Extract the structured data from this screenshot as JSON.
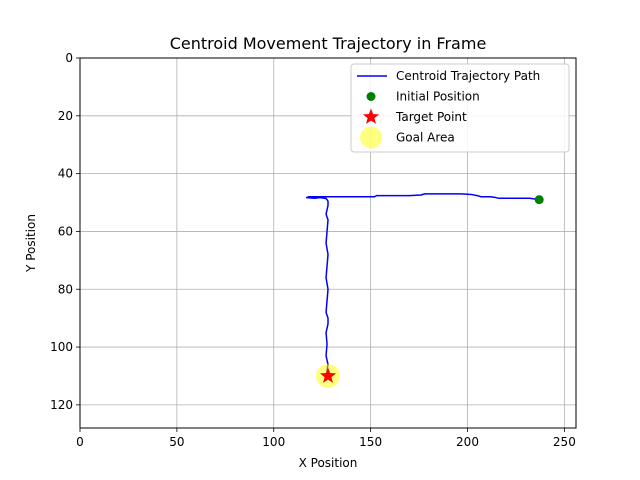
{
  "chart_data": {
    "type": "line",
    "title": "Centroid Movement Trajectory in Frame",
    "xlabel": "X Position",
    "ylabel": "Y Position",
    "xlim": [
      0,
      256
    ],
    "ylim": [
      128,
      0
    ],
    "y_inverted": true,
    "grid": true,
    "legend_position": "upper right",
    "x_ticks": [
      0,
      50,
      100,
      150,
      200,
      250
    ],
    "y_ticks": [
      0,
      20,
      40,
      60,
      80,
      100,
      120
    ],
    "series": [
      {
        "name": "Centroid Trajectory Path",
        "kind": "line",
        "color": "#0000ff",
        "points": [
          [
            237,
            49
          ],
          [
            232,
            48.5
          ],
          [
            225,
            48.5
          ],
          [
            216,
            48.5
          ],
          [
            214,
            48.2
          ],
          [
            212,
            48
          ],
          [
            207,
            48
          ],
          [
            205,
            47.6
          ],
          [
            202,
            47.2
          ],
          [
            197,
            47
          ],
          [
            190,
            47
          ],
          [
            183,
            47
          ],
          [
            178,
            47
          ],
          [
            176,
            47.4
          ],
          [
            170,
            47.6
          ],
          [
            160,
            47.6
          ],
          [
            153,
            47.6
          ],
          [
            152,
            48
          ],
          [
            150,
            48
          ],
          [
            140,
            48
          ],
          [
            133,
            48
          ],
          [
            125,
            48
          ],
          [
            118,
            48
          ],
          [
            117,
            48.3
          ],
          [
            121,
            48.5
          ],
          [
            124,
            48.3
          ],
          [
            127,
            48.6
          ],
          [
            128,
            49.5
          ],
          [
            128,
            51
          ],
          [
            127,
            54
          ],
          [
            128,
            56
          ],
          [
            127.5,
            60
          ],
          [
            127,
            64
          ],
          [
            128,
            68
          ],
          [
            127.5,
            72
          ],
          [
            127,
            76
          ],
          [
            128,
            80
          ],
          [
            127.5,
            84
          ],
          [
            127,
            88
          ],
          [
            128,
            90
          ],
          [
            128,
            92
          ],
          [
            127,
            95
          ],
          [
            127.5,
            99
          ],
          [
            127,
            103
          ],
          [
            128,
            106
          ],
          [
            127.5,
            108
          ],
          [
            128,
            110
          ]
        ]
      },
      {
        "name": "Initial Position",
        "kind": "marker-circle",
        "color": "#008000",
        "x": 237,
        "y": 49
      },
      {
        "name": "Target Point",
        "kind": "marker-star",
        "color": "#ff0000",
        "x": 128,
        "y": 110
      },
      {
        "name": "Goal Area",
        "kind": "marker-circle-large",
        "color": "#ffff00",
        "opacity": 0.5,
        "x": 128,
        "y": 110
      }
    ]
  }
}
